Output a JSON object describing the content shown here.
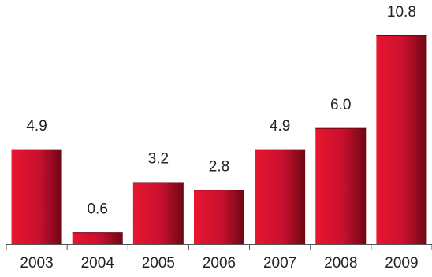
{
  "chart_data": {
    "type": "bar",
    "categories": [
      "2003",
      "2004",
      "2005",
      "2006",
      "2007",
      "2008",
      "2009"
    ],
    "values": [
      4.9,
      0.6,
      3.2,
      2.8,
      4.9,
      6.0,
      10.8
    ],
    "value_labels": [
      "4.9",
      "0.6",
      "3.2",
      "2.8",
      "4.9",
      "6.0",
      "10.8"
    ],
    "title": "",
    "xlabel": "",
    "ylabel": "",
    "ylim": [
      0,
      10.8
    ],
    "grid": false,
    "legend": "none",
    "colors": {
      "bar_light": "#e8162f",
      "bar_mid": "#c8102e",
      "bar_dark": "#6e0714",
      "axis": "#555555",
      "text": "#222222"
    }
  }
}
